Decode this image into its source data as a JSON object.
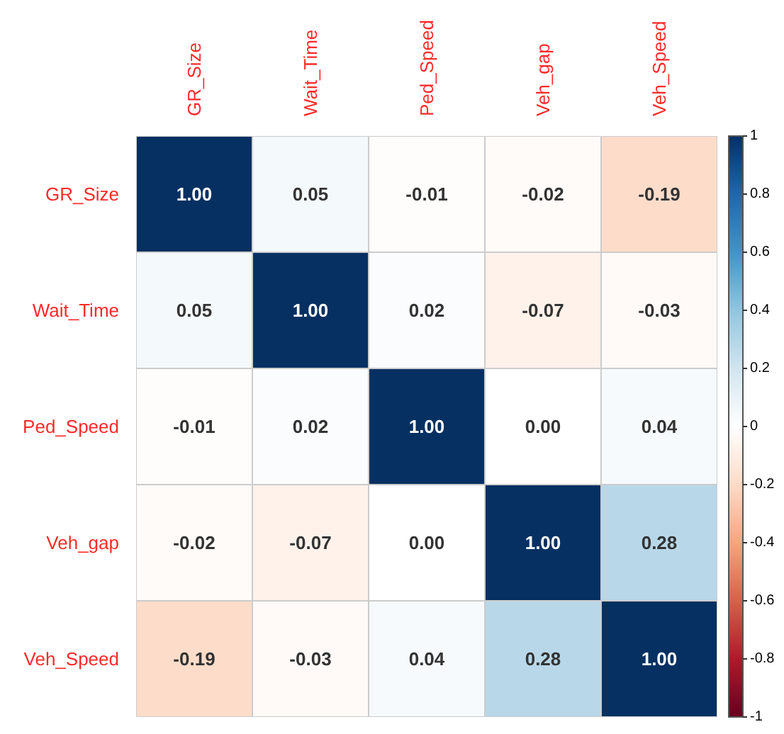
{
  "chart_data": {
    "type": "heatmap",
    "categories": [
      "GR_Size",
      "Wait_Time",
      "Ped_Speed",
      "Veh_gap",
      "Veh_Speed"
    ],
    "y_categories": [
      "GR_Size",
      "Wait_Time",
      "Ped_Speed",
      "Veh_gap",
      "Veh_Speed"
    ],
    "cells": [
      [
        1.0,
        0.05,
        -0.01,
        -0.02,
        -0.19
      ],
      [
        0.05,
        1.0,
        0.02,
        -0.07,
        -0.03
      ],
      [
        -0.01,
        0.02,
        1.0,
        0.0,
        0.04
      ],
      [
        -0.02,
        -0.07,
        0.0,
        1.0,
        0.28
      ],
      [
        -0.19,
        -0.03,
        0.04,
        0.28,
        1.0
      ]
    ],
    "cell_labels": [
      [
        "1.00",
        "0.05",
        "-0.01",
        "-0.02",
        "-0.19"
      ],
      [
        "0.05",
        "1.00",
        "0.02",
        "-0.07",
        "-0.03"
      ],
      [
        "-0.01",
        "0.02",
        "1.00",
        "0.00",
        "0.04"
      ],
      [
        "-0.02",
        "-0.07",
        "0.00",
        "1.00",
        "0.28"
      ],
      [
        "-0.19",
        "-0.03",
        "0.04",
        "0.28",
        "1.00"
      ]
    ],
    "clim": [
      -1,
      1
    ],
    "cticks": [
      -1,
      -0.8,
      -0.6,
      -0.4,
      -0.2,
      0,
      0.2,
      0.4,
      0.6,
      0.8,
      1
    ]
  }
}
